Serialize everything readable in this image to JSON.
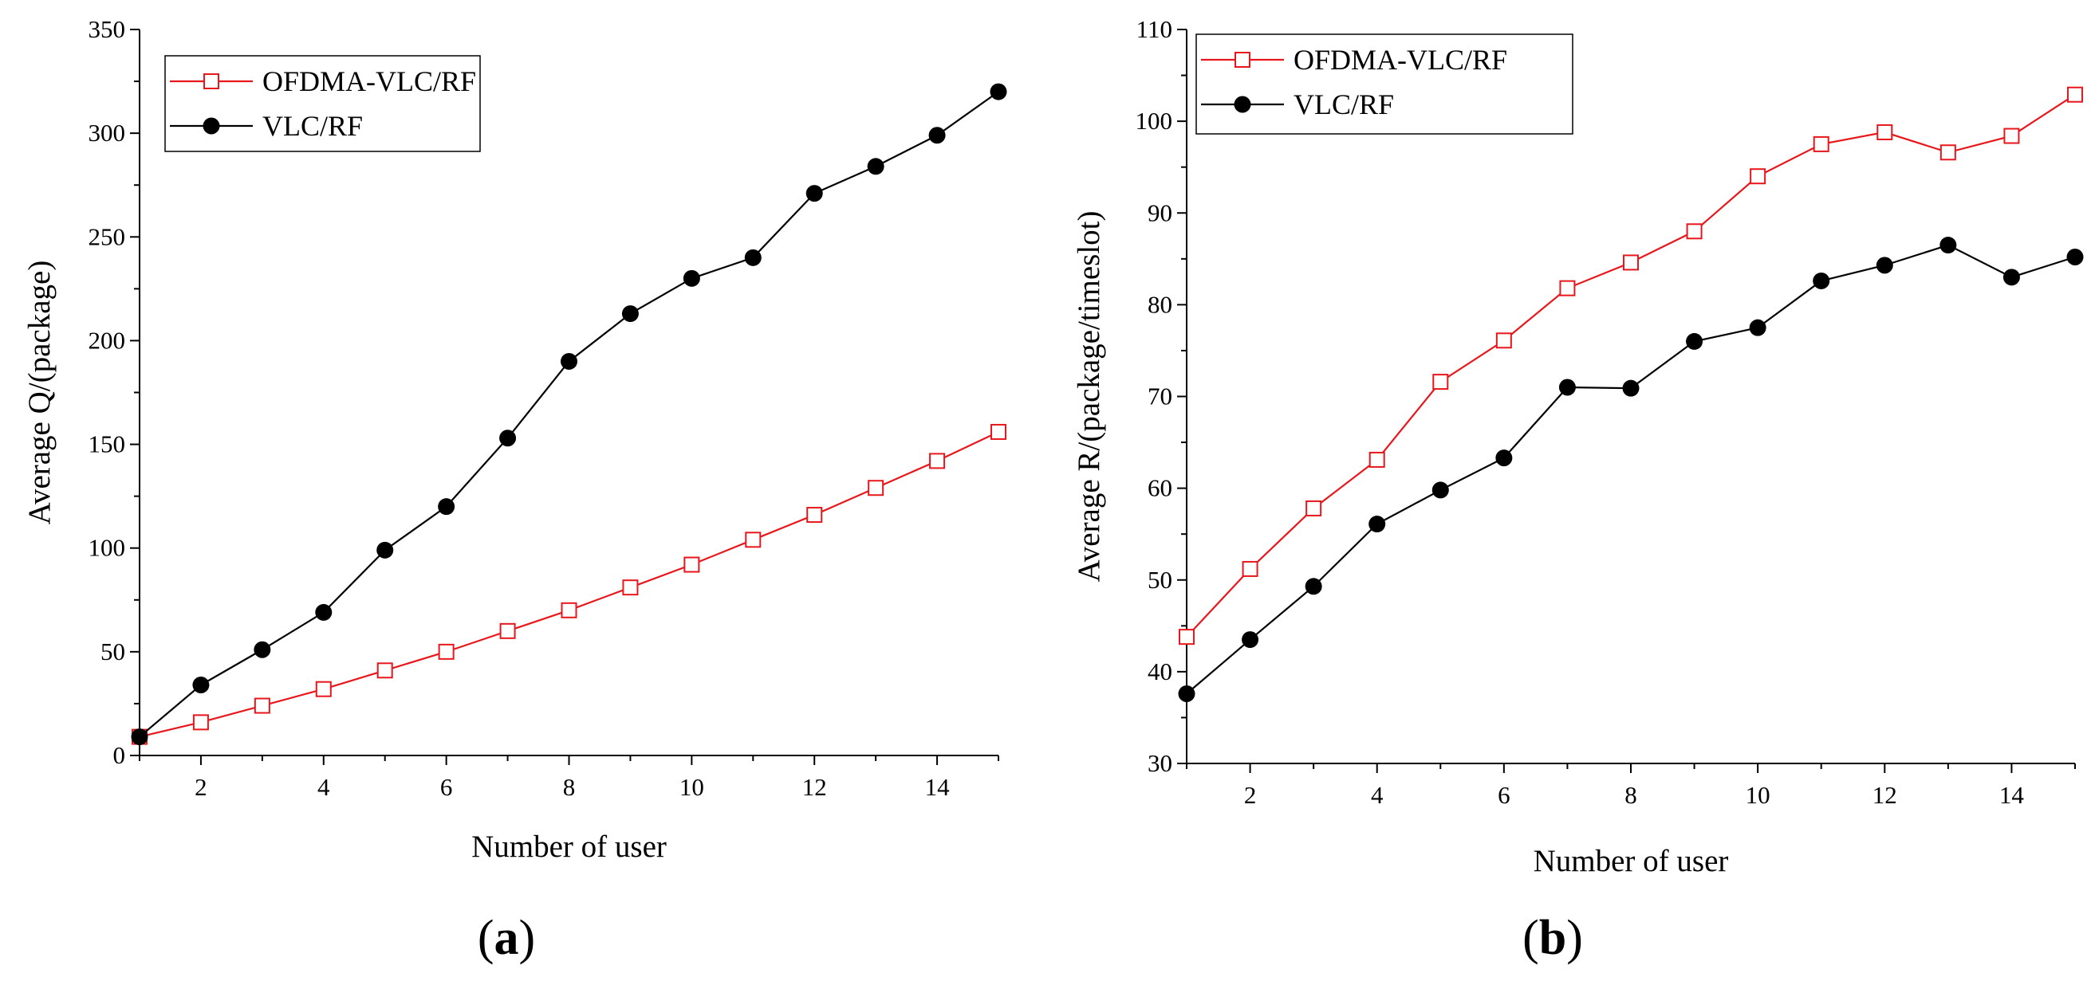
{
  "chart_data": [
    {
      "type": "line",
      "panel_label": "a",
      "xlabel": "Number of user",
      "ylabel": "Average Q/(package)",
      "xlim": [
        1,
        15
      ],
      "ylim": [
        0,
        350
      ],
      "xticks": [
        2,
        4,
        6,
        8,
        10,
        12,
        14
      ],
      "yticks": [
        0,
        50,
        100,
        150,
        200,
        250,
        300,
        350
      ],
      "x": [
        1,
        2,
        3,
        4,
        5,
        6,
        7,
        8,
        9,
        10,
        11,
        12,
        13,
        14,
        15
      ],
      "legend_position": "top-left",
      "series": [
        {
          "name": "OFDMA-VLC/RF",
          "color": "#e8171c",
          "marker": "open-square",
          "values": [
            9,
            16,
            24,
            32,
            41,
            50,
            60,
            70,
            81,
            92,
            104,
            116,
            129,
            142,
            156
          ]
        },
        {
          "name": "VLC/RF",
          "color": "#000000",
          "marker": "filled-circle",
          "values": [
            9,
            34,
            51,
            69,
            99,
            120,
            153,
            190,
            213,
            230,
            240,
            271,
            284,
            299,
            320
          ]
        }
      ]
    },
    {
      "type": "line",
      "panel_label": "b",
      "xlabel": "Number of user",
      "ylabel": "Average R/(package/timeslot)",
      "xlim": [
        1,
        15
      ],
      "ylim": [
        30,
        110
      ],
      "xticks": [
        2,
        4,
        6,
        8,
        10,
        12,
        14
      ],
      "yticks": [
        30,
        40,
        50,
        60,
        70,
        80,
        90,
        100,
        110
      ],
      "x": [
        1,
        2,
        3,
        4,
        5,
        6,
        7,
        8,
        9,
        10,
        11,
        12,
        13,
        14,
        15
      ],
      "legend_position": "top-left",
      "series": [
        {
          "name": "OFDMA-VLC/RF",
          "color": "#e8171c",
          "marker": "open-square",
          "values": [
            43.8,
            51.2,
            57.8,
            63.1,
            71.6,
            76.1,
            81.8,
            84.6,
            88.0,
            94.0,
            97.5,
            98.8,
            96.6,
            98.4,
            102.9
          ]
        },
        {
          "name": "VLC/RF",
          "color": "#000000",
          "marker": "filled-circle",
          "values": [
            37.6,
            43.5,
            49.3,
            56.1,
            59.8,
            63.3,
            71.0,
            70.9,
            76.0,
            77.5,
            82.6,
            84.3,
            86.5,
            83.0,
            85.2
          ]
        }
      ]
    }
  ]
}
